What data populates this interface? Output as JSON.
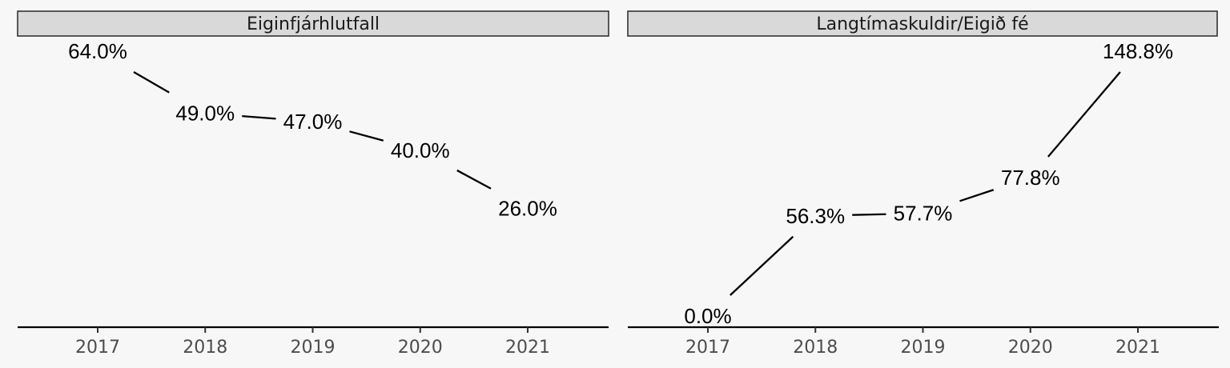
{
  "chart_data": [
    {
      "type": "line",
      "title": "Eiginfjárhlutfall",
      "categories": [
        "2017",
        "2018",
        "2019",
        "2020",
        "2021"
      ],
      "values": [
        64.0,
        49.0,
        47.0,
        40.0,
        26.0
      ],
      "labels": [
        "64.0%",
        "49.0%",
        "47.0%",
        "40.0%",
        "26.0%"
      ],
      "ylim": [
        0,
        64.0
      ],
      "grid": false,
      "legend": "none"
    },
    {
      "type": "line",
      "title": "Langtímaskuldir/Eigið fé",
      "categories": [
        "2017",
        "2018",
        "2019",
        "2020",
        "2021"
      ],
      "values": [
        0.0,
        56.3,
        57.7,
        77.8,
        148.8
      ],
      "labels": [
        "0.0%",
        "56.3%",
        "57.7%",
        "77.8%",
        "148.8%"
      ],
      "ylim": [
        0,
        148.8
      ],
      "grid": false,
      "legend": "none"
    }
  ]
}
